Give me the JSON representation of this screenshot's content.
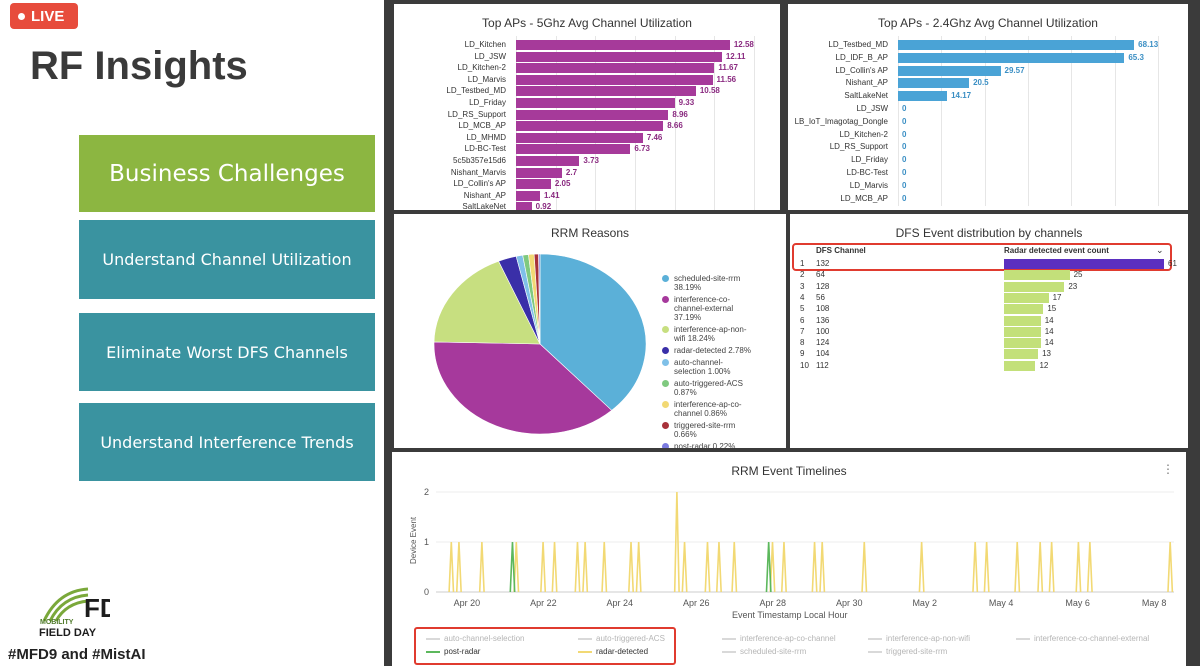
{
  "live_badge": "LIVE",
  "slide": {
    "title": "RF Insights",
    "boxes": [
      "Business Challenges",
      "Understand Channel Utilization",
      "Eliminate Worst DFS Channels",
      "Understand Interference Trends"
    ],
    "logo_sub": "MOBILITY",
    "logo_main": "FIELD DAY",
    "hashtags": "#MFD9 and #MistAI"
  },
  "colors": {
    "magenta": "#a63a9a",
    "blue": "#4aa3d6",
    "lime": "#c3e07a",
    "purple": "#5b2fc0",
    "highlight": "#e03b2f",
    "teal": "#3a93a0",
    "green": "#8cb641"
  },
  "chart_data": [
    {
      "type": "bar",
      "title": "Top APs - 5Ghz Avg Channel Utilization",
      "orientation": "horizontal",
      "categories": [
        "LD_Kitchen",
        "LD_JSW",
        "LD_Kitchen-2",
        "LD_Marvis",
        "LD_Testbed_MD",
        "LD_Friday",
        "LD_RS_Support",
        "LD_MCB_AP",
        "LD_MHMD",
        "LD-BC-Test",
        "5c5b357e15d6",
        "Nishant_Marvis",
        "LD_Collin's AP",
        "Nishant_AP",
        "SaltLakeNet"
      ],
      "values": [
        12.58,
        12.11,
        11.67,
        11.56,
        10.58,
        9.33,
        8.96,
        8.66,
        7.46,
        6.73,
        3.73,
        2.7,
        2.05,
        1.41,
        0.92
      ],
      "xlim": [
        0,
        14
      ]
    },
    {
      "type": "bar",
      "title": "Top APs - 2.4Ghz Avg Channel Utilization",
      "orientation": "horizontal",
      "categories": [
        "LD_Testbed_MD",
        "LD_IDF_B_AP",
        "LD_Collin's AP",
        "Nishant_AP",
        "SaltLakeNet",
        "LD_JSW",
        "LB_IoT_Imagotag_Dongle",
        "LD_Kitchen-2",
        "LD_RS_Support",
        "LD_Friday",
        "LD-BC-Test",
        "LD_Marvis",
        "LD_MCB_AP"
      ],
      "values": [
        68.13,
        65.3,
        29.57,
        20.5,
        14.17,
        0,
        0,
        0,
        0,
        0,
        0,
        0,
        0
      ],
      "xlim": [
        0,
        75
      ]
    },
    {
      "type": "pie",
      "title": "RRM Reasons",
      "slices": [
        {
          "label": "scheduled-site-rrm",
          "value": 38.19,
          "color": "#5bb0d8"
        },
        {
          "label": "interference-co-channel-external",
          "value": 37.19,
          "color": "#a6399c"
        },
        {
          "label": "interference-ap-non-wifi",
          "value": 18.24,
          "color": "#c7df80"
        },
        {
          "label": "radar-detected",
          "value": 2.78,
          "color": "#3a2fa8"
        },
        {
          "label": "auto-channel-selection",
          "value": 1.0,
          "color": "#7fc0e8"
        },
        {
          "label": "auto-triggered-ACS",
          "value": 0.87,
          "color": "#7fc97f"
        },
        {
          "label": "interference-ap-co-channel",
          "value": 0.86,
          "color": "#f2d974"
        },
        {
          "label": "triggered-site-rrm",
          "value": 0.66,
          "color": "#a8323a"
        },
        {
          "label": "post-radar",
          "value": 0.22,
          "color": "#7b7be0"
        }
      ],
      "legend_lines": [
        [
          "scheduled-site-rrm",
          "38.19%"
        ],
        [
          "interference-co-",
          "channel-external",
          "37.19%"
        ],
        [
          "interference-ap-non-",
          "wifi 18.24%"
        ],
        [
          "radar-detected 2.78%"
        ],
        [
          "auto-channel-",
          "selection 1.00%"
        ],
        [
          "auto-triggered-ACS",
          "0.87%"
        ],
        [
          "interference-ap-co-",
          "channel 0.86%"
        ],
        [
          "triggered-site-rrm",
          "0.66%"
        ],
        [
          "post-radar 0.22%"
        ]
      ]
    },
    {
      "type": "table",
      "title": "DFS Event distribution by channels",
      "columns": [
        "DFS Channel",
        "Radar detected event count"
      ],
      "rows": [
        {
          "idx": "1",
          "channel": "132",
          "count": 61
        },
        {
          "idx": "2",
          "channel": "64",
          "count": 25
        },
        {
          "idx": "3",
          "channel": "128",
          "count": 23
        },
        {
          "idx": "4",
          "channel": "56",
          "count": 17
        },
        {
          "idx": "5",
          "channel": "108",
          "count": 15
        },
        {
          "idx": "6",
          "channel": "136",
          "count": 14
        },
        {
          "idx": "7",
          "channel": "100",
          "count": 14
        },
        {
          "idx": "8",
          "channel": "124",
          "count": 14
        },
        {
          "idx": "9",
          "channel": "104",
          "count": 13
        },
        {
          "idx": "10",
          "channel": "112",
          "count": 12
        }
      ]
    },
    {
      "type": "line",
      "title": "RRM Event Timelines",
      "xlabel": "Event Timestamp Local Hour",
      "ylabel": "Device Event",
      "ylim": [
        0,
        2
      ],
      "yticks": [
        "0",
        "1",
        "2"
      ],
      "xticks": [
        "Apr 20",
        "Apr 22",
        "Apr 24",
        "Apr 26",
        "Apr 28",
        "Apr 30",
        "May 2",
        "May 4",
        "May 6",
        "May 8"
      ],
      "xlim": [
        19.2,
        38.5
      ],
      "series": [
        {
          "name": "radar-detected",
          "color": "#f2d974",
          "spikes": [
            [
              19.6,
              1
            ],
            [
              19.8,
              1
            ],
            [
              20.4,
              1
            ],
            [
              21.3,
              1
            ],
            [
              22.0,
              1
            ],
            [
              22.3,
              1
            ],
            [
              22.9,
              1
            ],
            [
              23.1,
              1
            ],
            [
              23.6,
              1
            ],
            [
              24.3,
              1
            ],
            [
              24.5,
              1
            ],
            [
              25.5,
              2
            ],
            [
              25.7,
              1
            ],
            [
              26.3,
              1
            ],
            [
              26.6,
              1
            ],
            [
              27.0,
              1
            ],
            [
              28.0,
              1
            ],
            [
              28.3,
              1
            ],
            [
              29.1,
              1
            ],
            [
              29.3,
              1
            ],
            [
              30.4,
              1
            ],
            [
              31.9,
              1
            ],
            [
              33.3,
              1
            ],
            [
              33.6,
              1
            ],
            [
              34.4,
              1
            ],
            [
              35.0,
              1
            ],
            [
              35.3,
              1
            ],
            [
              36.0,
              1
            ],
            [
              36.3,
              1
            ],
            [
              38.4,
              1
            ]
          ]
        },
        {
          "name": "post-radar",
          "color": "#5cb85c",
          "spikes": [
            [
              21.2,
              1
            ],
            [
              27.9,
              1
            ]
          ]
        },
        {
          "name": "auto-channel-selection",
          "color": "#d9d9d9",
          "spikes": []
        },
        {
          "name": "auto-triggered-ACS",
          "color": "#d9d9d9",
          "spikes": []
        },
        {
          "name": "interference-ap-co-channel",
          "color": "#d9d9d9",
          "spikes": []
        },
        {
          "name": "interference-ap-non-wifi",
          "color": "#d9d9d9",
          "spikes": []
        },
        {
          "name": "interference-co-channel-external",
          "color": "#d9d9d9",
          "spikes": []
        },
        {
          "name": "scheduled-site-rrm",
          "color": "#d9d9d9",
          "spikes": []
        },
        {
          "name": "triggered-site-rrm",
          "color": "#d9d9d9",
          "spikes": []
        }
      ]
    }
  ]
}
